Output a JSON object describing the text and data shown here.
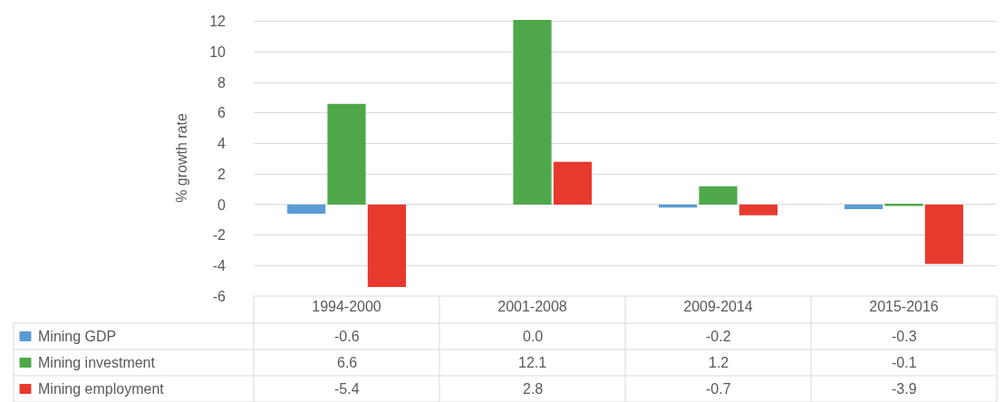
{
  "chart_data": {
    "type": "bar",
    "ylabel": "% growth rate",
    "categories": [
      "1994-2000",
      "2001-2008",
      "2009-2014",
      "2015-2016"
    ],
    "series": [
      {
        "name": "Mining GDP",
        "color": "#5b9bd5",
        "values": [
          -0.6,
          0.0,
          -0.2,
          -0.3
        ],
        "value_labels": [
          "-0.6",
          "0.0",
          "-0.2",
          "-0.3"
        ]
      },
      {
        "name": "Mining investment",
        "color": "#4ea84a",
        "values": [
          6.6,
          12.1,
          1.2,
          -0.1
        ],
        "value_labels": [
          "6.6",
          "12.1",
          "1.2",
          "-0.1"
        ]
      },
      {
        "name": "Mining employment",
        "color": "#e8392f",
        "values": [
          -5.4,
          2.8,
          -0.7,
          -3.9
        ],
        "value_labels": [
          "-5.4",
          "2.8",
          "-0.7",
          "-3.9"
        ]
      }
    ],
    "ylim": [
      -6,
      12.1
    ],
    "yticks": [
      -6,
      -4,
      -2,
      0,
      2,
      4,
      6,
      8,
      10,
      12
    ],
    "grid": "y",
    "legend": "bottom left"
  }
}
